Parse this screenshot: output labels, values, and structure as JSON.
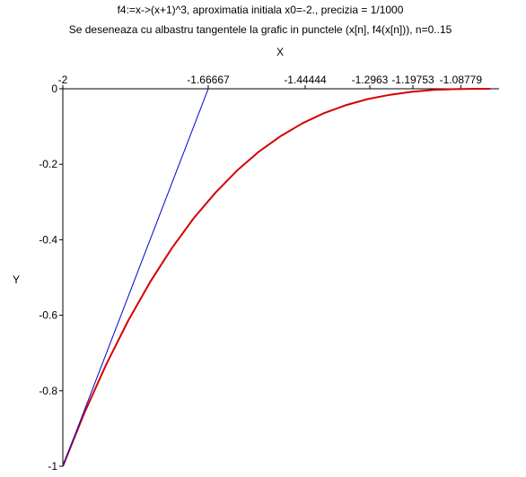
{
  "chart_data": {
    "type": "line",
    "title": "f4:=x->(x+1)^3, aproximatia initiala x0=-2.,  precizia = 1/1000",
    "subtitle": "Se deseneaza cu albastru tangentele la grafic in punctele (x[n], f4(x[n])), n=0..15",
    "xlabel": "X",
    "ylabel": "Y",
    "xlim": [
      -2,
      -1
    ],
    "ylim": [
      -1,
      0
    ],
    "x_tick_labels": [
      {
        "value": -2,
        "label": "-2"
      },
      {
        "value": -1.66667,
        "label": "-1.66667"
      },
      {
        "value": -1.44444,
        "label": "-1.44444"
      },
      {
        "value": -1.2963,
        "label": "-1.2963"
      },
      {
        "value": -1.19753,
        "label": "-1.19753"
      },
      {
        "value": -1.08779,
        "label": "-1.08779"
      }
    ],
    "y_tick_labels": [
      {
        "value": 0,
        "label": "0"
      },
      {
        "value": -0.2,
        "label": "-0.2"
      },
      {
        "value": -0.4,
        "label": "-0.4"
      },
      {
        "value": -0.6,
        "label": "-0.6"
      },
      {
        "value": -0.8,
        "label": "-0.8"
      },
      {
        "value": -1,
        "label": "-1"
      }
    ],
    "series": [
      {
        "role": "function",
        "color": "#d40000",
        "x": [
          -2,
          -1.95,
          -1.9,
          -1.85,
          -1.8,
          -1.75,
          -1.7,
          -1.65,
          -1.6,
          -1.55,
          -1.5,
          -1.45,
          -1.4,
          -1.35,
          -1.3,
          -1.25,
          -1.2,
          -1.15,
          -1.1,
          -1.05,
          -1.02
        ],
        "y": [
          -1,
          -0.857,
          -0.729,
          -0.614,
          -0.512,
          -0.422,
          -0.343,
          -0.275,
          -0.216,
          -0.166,
          -0.125,
          -0.091,
          -0.064,
          -0.043,
          -0.027,
          -0.016,
          -0.008,
          -0.003,
          -0.001,
          0,
          0
        ]
      },
      {
        "role": "tangent",
        "color": "#0000c8",
        "x": [
          -2,
          -1.66667
        ],
        "y": [
          -1,
          0
        ]
      }
    ],
    "grid": false
  }
}
